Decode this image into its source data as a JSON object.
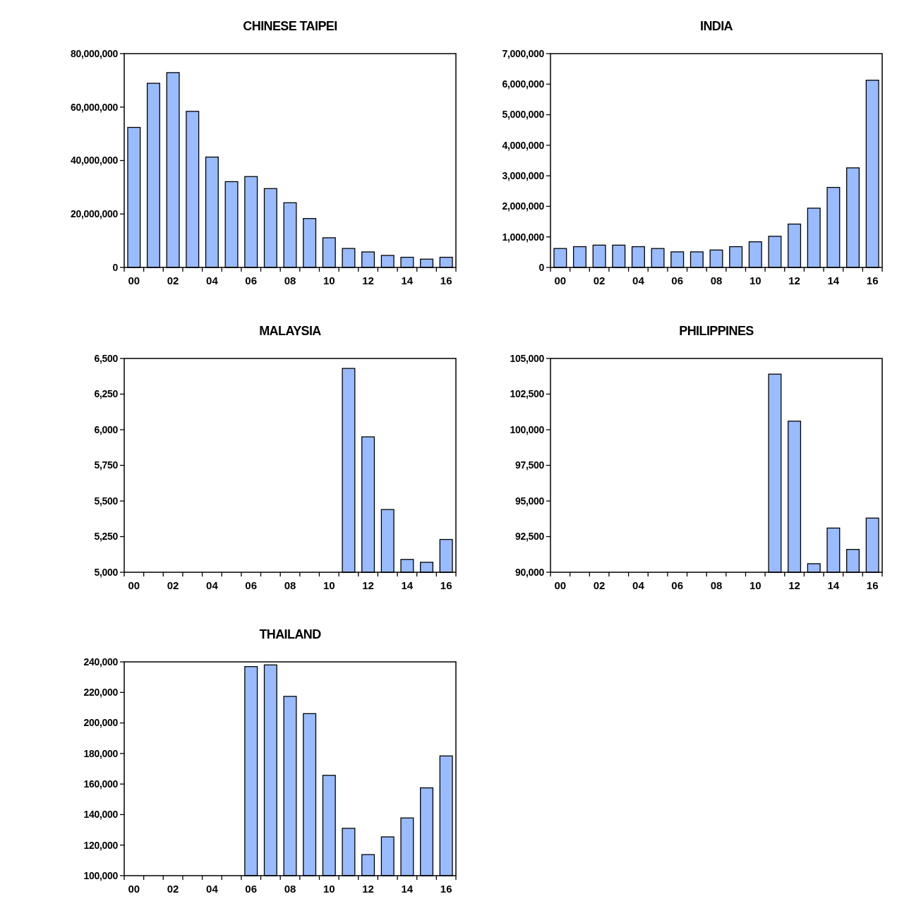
{
  "chart_data": [
    {
      "type": "bar",
      "title": "CHINESE TAIPEI",
      "categories": [
        "00",
        null,
        "02",
        null,
        "04",
        null,
        "06",
        null,
        "08",
        null,
        "10",
        null,
        "12",
        null,
        "14",
        null,
        "16"
      ],
      "values": [
        52400000,
        68900000,
        72900000,
        58400000,
        41300000,
        32100000,
        34000000,
        29500000,
        24200000,
        18300000,
        11100000,
        7100000,
        5800000,
        4500000,
        3800000,
        3100000,
        3800000
      ],
      "color": "#99bbff",
      "ylim": [
        0,
        80000000
      ],
      "yticks": [
        {
          "value": 0,
          "label": "0"
        },
        {
          "value": 20000000,
          "label": "20,000,000"
        },
        {
          "value": 40000000,
          "label": "40,000,000"
        },
        {
          "value": 60000000,
          "label": "60,000,000"
        },
        {
          "value": 80000000,
          "label": "80,000,000"
        }
      ]
    },
    {
      "type": "bar",
      "title": "INDIA",
      "categories": [
        "00",
        null,
        "02",
        null,
        "04",
        null,
        "06",
        null,
        "08",
        null,
        "10",
        null,
        "12",
        null,
        "14",
        null,
        "16"
      ],
      "values": [
        620000,
        680000,
        730000,
        730000,
        680000,
        620000,
        510000,
        510000,
        570000,
        680000,
        840000,
        1020000,
        1420000,
        1940000,
        2620000,
        3260000,
        6130000
      ],
      "color": "#99bbff",
      "ylim": [
        0,
        7000000
      ],
      "yticks": [
        {
          "value": 0,
          "label": "0"
        },
        {
          "value": 1000000,
          "label": "1,000,000"
        },
        {
          "value": 2000000,
          "label": "2,000,000"
        },
        {
          "value": 3000000,
          "label": "3,000,000"
        },
        {
          "value": 4000000,
          "label": "4,000,000"
        },
        {
          "value": 5000000,
          "label": "5,000,000"
        },
        {
          "value": 6000000,
          "label": "6,000,000"
        },
        {
          "value": 7000000,
          "label": "7,000,000"
        }
      ]
    },
    {
      "type": "bar",
      "title": "MALAYSIA",
      "categories": [
        "00",
        null,
        "02",
        null,
        "04",
        null,
        "06",
        null,
        "08",
        null,
        "10",
        null,
        "12",
        null,
        "14",
        null,
        "16"
      ],
      "values": [
        null,
        null,
        null,
        null,
        null,
        null,
        null,
        null,
        null,
        null,
        null,
        6430,
        5950,
        5440,
        5090,
        5070,
        5230
      ],
      "color": "#99bbff",
      "ylim": [
        5000,
        6500
      ],
      "yticks": [
        {
          "value": 5000,
          "label": "5,000"
        },
        {
          "value": 5250,
          "label": "5,250"
        },
        {
          "value": 5500,
          "label": "5,500"
        },
        {
          "value": 5750,
          "label": "5,750"
        },
        {
          "value": 6000,
          "label": "6,000"
        },
        {
          "value": 6250,
          "label": "6,250"
        },
        {
          "value": 6500,
          "label": "6,500"
        }
      ]
    },
    {
      "type": "bar",
      "title": "PHILIPPINES",
      "categories": [
        "00",
        null,
        "02",
        null,
        "04",
        null,
        "06",
        null,
        "08",
        null,
        "10",
        null,
        "12",
        null,
        "14",
        null,
        "16"
      ],
      "values": [
        null,
        null,
        null,
        null,
        null,
        null,
        null,
        null,
        null,
        null,
        null,
        103900,
        100600,
        90600,
        93100,
        91600,
        93800
      ],
      "color": "#99bbff",
      "ylim": [
        90000,
        105000
      ],
      "yticks": [
        {
          "value": 90000,
          "label": "90,000"
        },
        {
          "value": 92500,
          "label": "92,500"
        },
        {
          "value": 95000,
          "label": "95,000"
        },
        {
          "value": 97500,
          "label": "97,500"
        },
        {
          "value": 100000,
          "label": "100,000"
        },
        {
          "value": 102500,
          "label": "102,500"
        },
        {
          "value": 105000,
          "label": "105,000"
        }
      ]
    },
    {
      "type": "bar",
      "title": "THAILAND",
      "categories": [
        "00",
        null,
        "02",
        null,
        "04",
        null,
        "06",
        null,
        "08",
        null,
        "10",
        null,
        "12",
        null,
        "14",
        null,
        "16"
      ],
      "values": [
        null,
        null,
        null,
        null,
        null,
        null,
        236900,
        238000,
        217400,
        206100,
        165700,
        131000,
        113800,
        125400,
        137800,
        157500,
        178400
      ],
      "color": "#99bbff",
      "ylim": [
        100000,
        240000
      ],
      "yticks": [
        {
          "value": 100000,
          "label": "100,000"
        },
        {
          "value": 120000,
          "label": "120,000"
        },
        {
          "value": 140000,
          "label": "140,000"
        },
        {
          "value": 160000,
          "label": "160,000"
        },
        {
          "value": 180000,
          "label": "180,000"
        },
        {
          "value": 200000,
          "label": "200,000"
        },
        {
          "value": 220000,
          "label": "220,000"
        },
        {
          "value": 240000,
          "label": "240,000"
        }
      ]
    }
  ]
}
